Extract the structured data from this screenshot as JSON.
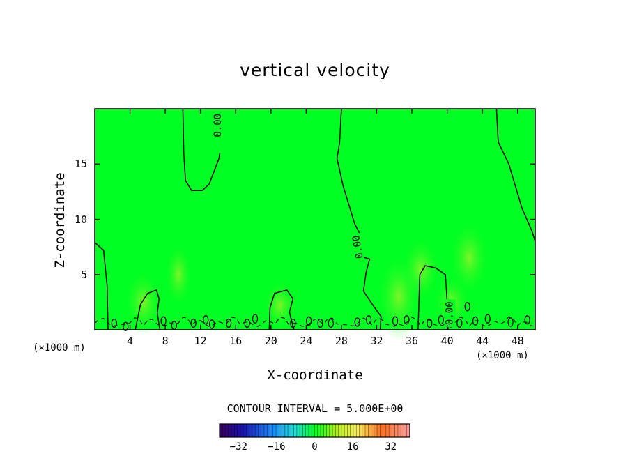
{
  "chart_data": {
    "type": "heatmap",
    "title": "vertical velocity",
    "xlabel": "X-coordinate",
    "ylabel": "Z-coordinate",
    "x_unit_left": "(×1000 m)",
    "x_unit_right": "(×1000 m)",
    "xlim": [
      0,
      50
    ],
    "ylim": [
      0,
      20
    ],
    "x_ticks": [
      4,
      8,
      12,
      16,
      20,
      24,
      28,
      32,
      36,
      40,
      44,
      48
    ],
    "y_ticks": [
      5,
      10,
      15
    ],
    "contour_interval_text": "CONTOUR INTERVAL = 5.000E+00",
    "contour_labels": [
      "0.00",
      "0.00",
      "0.00"
    ],
    "colorbar": {
      "ticks": [
        -32,
        -16,
        0,
        16,
        32
      ],
      "range": [
        -40,
        40
      ]
    },
    "colors": {
      "field": "#00ff22",
      "contour": "#000000"
    },
    "zero_contours": [
      {
        "label": "0.00",
        "points": [
          [
            10,
            20
          ],
          [
            10.1,
            16
          ],
          [
            10.3,
            13.5
          ],
          [
            11,
            12.6
          ],
          [
            12.2,
            12.6
          ],
          [
            13,
            13.2
          ],
          [
            14.1,
            15.5
          ],
          [
            14.2,
            16
          ]
        ]
      },
      {
        "label": "0.00",
        "points": [
          [
            28,
            20
          ],
          [
            27.8,
            17
          ],
          [
            27.5,
            15.5
          ],
          [
            28.2,
            13
          ],
          [
            29.5,
            9.6
          ],
          [
            30.2,
            8.5
          ],
          [
            30.4,
            6.6
          ],
          [
            31.2,
            6.4
          ],
          [
            30.8,
            5.2
          ],
          [
            30.5,
            3.5
          ],
          [
            31.6,
            2.2
          ],
          [
            32.5,
            1.2
          ],
          [
            32.4,
            0
          ]
        ]
      },
      {
        "label": "",
        "points": [
          [
            45.6,
            20
          ],
          [
            45.8,
            17
          ],
          [
            47,
            15
          ],
          [
            48.5,
            11
          ],
          [
            49.6,
            9
          ],
          [
            50,
            8
          ]
        ]
      },
      {
        "label": "",
        "points": [
          [
            0,
            7.9
          ],
          [
            1,
            7.2
          ],
          [
            1.4,
            4
          ],
          [
            1.5,
            0
          ]
        ]
      },
      {
        "label": "0.00",
        "points": [
          [
            36.7,
            0
          ],
          [
            36.9,
            5
          ],
          [
            37.5,
            5.8
          ],
          [
            38.7,
            5.6
          ],
          [
            39.8,
            5
          ],
          [
            40,
            2.6
          ],
          [
            40.1,
            0
          ]
        ]
      },
      {
        "label": "",
        "points": [
          [
            4.6,
            0
          ],
          [
            5.2,
            2.3
          ],
          [
            6,
            3.3
          ],
          [
            7,
            3.6
          ],
          [
            7.3,
            2.8
          ],
          [
            7.1,
            1.5
          ],
          [
            7.4,
            0
          ]
        ]
      },
      {
        "label": "",
        "points": [
          [
            19.8,
            0
          ],
          [
            19.9,
            2
          ],
          [
            20.4,
            3.3
          ],
          [
            21.8,
            3.6
          ],
          [
            22.5,
            2.8
          ],
          [
            22.1,
            1.6
          ],
          [
            22.6,
            0
          ]
        ]
      }
    ]
  }
}
